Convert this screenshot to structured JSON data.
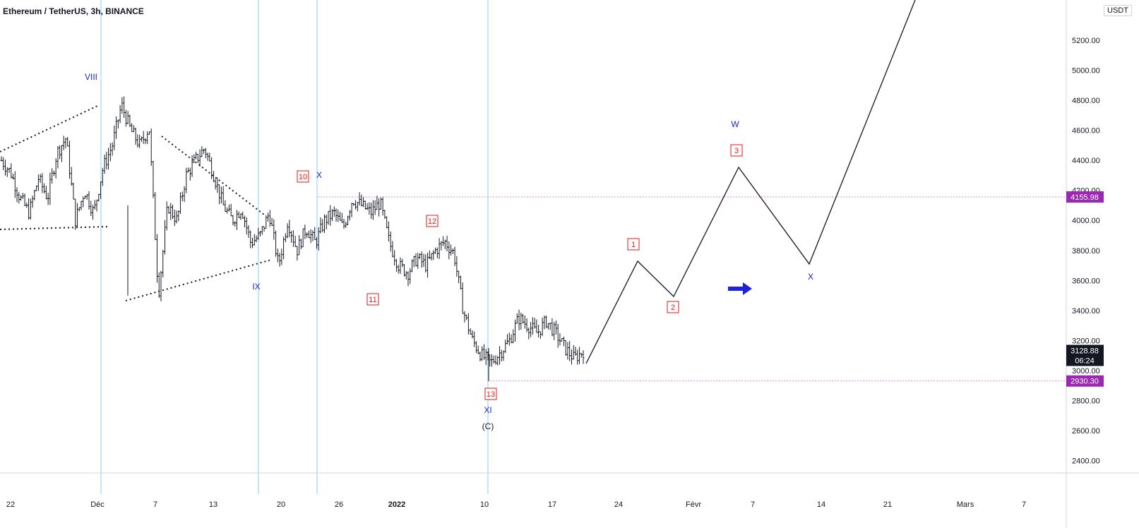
{
  "header": {
    "symbol_title": "Ethereum / TetherUS, 3h, BINANCE",
    "currency_button": "USDT"
  },
  "chart_data": {
    "type": "candlestick",
    "title": "Ethereum / TetherUS, 3h, BINANCE",
    "ylim": [
      2280,
      5480
    ],
    "y_ticks": [
      "2400.00",
      "2600.00",
      "2800.00",
      "3000.00",
      "3200.00",
      "3400.00",
      "3600.00",
      "3800.00",
      "4000.00",
      "4200.00",
      "4400.00",
      "4600.00",
      "4800.00",
      "5000.00",
      "5200.00"
    ],
    "x_ticks": [
      "22",
      "Déc",
      "7",
      "13",
      "20",
      "26",
      "2022",
      "10",
      "17",
      "24",
      "Févr",
      "7",
      "14",
      "21",
      "Mars",
      "7"
    ],
    "price_badges": [
      {
        "label": "4155.98",
        "value": 4155.98,
        "color": "#9c27b0"
      },
      {
        "label": "2930.30",
        "value": 2930.3,
        "color": "#9c27b0"
      }
    ],
    "last_price": {
      "label": "3128.88",
      "countdown": "06:24",
      "value": 3128.88
    },
    "horizontal_levels": [
      4155.98,
      2930.3
    ],
    "vertical_markers": [
      "Déc",
      "18",
      "23",
      "10"
    ],
    "price_path": [
      {
        "t": 0,
        "p": 4400
      },
      {
        "t": 1,
        "p": 4320
      },
      {
        "t": 2,
        "p": 4150
      },
      {
        "t": 3,
        "p": 4050
      },
      {
        "t": 4,
        "p": 4280
      },
      {
        "t": 5,
        "p": 4150
      },
      {
        "t": 6,
        "p": 4450
      },
      {
        "t": 7,
        "p": 4550
      },
      {
        "t": 8,
        "p": 4000
      },
      {
        "t": 9,
        "p": 4200
      },
      {
        "t": 10,
        "p": 4050
      },
      {
        "t": 11,
        "p": 4350
      },
      {
        "t": 12,
        "p": 4500
      },
      {
        "t": 13,
        "p": 4770
      },
      {
        "t": 14,
        "p": 4600
      },
      {
        "t": 15,
        "p": 4500
      },
      {
        "t": 16,
        "p": 4620
      },
      {
        "t": 17,
        "p": 3500
      },
      {
        "t": 18,
        "p": 4100
      },
      {
        "t": 19,
        "p": 4000
      },
      {
        "t": 20,
        "p": 4300
      },
      {
        "t": 21,
        "p": 4400
      },
      {
        "t": 22,
        "p": 4480
      },
      {
        "t": 23,
        "p": 4300
      },
      {
        "t": 24,
        "p": 4100
      },
      {
        "t": 25,
        "p": 4000
      },
      {
        "t": 26,
        "p": 4080
      },
      {
        "t": 27,
        "p": 3850
      },
      {
        "t": 28,
        "p": 3900
      },
      {
        "t": 29,
        "p": 4050
      },
      {
        "t": 30,
        "p": 3700
      },
      {
        "t": 31,
        "p": 4000
      },
      {
        "t": 32,
        "p": 3800
      },
      {
        "t": 33,
        "p": 3950
      },
      {
        "t": 34,
        "p": 3850
      },
      {
        "t": 35,
        "p": 4000
      },
      {
        "t": 36,
        "p": 4050
      },
      {
        "t": 37,
        "p": 3950
      },
      {
        "t": 38,
        "p": 4140
      },
      {
        "t": 39,
        "p": 4100
      },
      {
        "t": 40,
        "p": 4050
      },
      {
        "t": 41,
        "p": 4120
      },
      {
        "t": 42,
        "p": 3850
      },
      {
        "t": 43,
        "p": 3700
      },
      {
        "t": 44,
        "p": 3650
      },
      {
        "t": 45,
        "p": 3750
      },
      {
        "t": 46,
        "p": 3700
      },
      {
        "t": 47,
        "p": 3800
      },
      {
        "t": 48,
        "p": 3860
      },
      {
        "t": 49,
        "p": 3780
      },
      {
        "t": 50,
        "p": 3400
      },
      {
        "t": 51,
        "p": 3200
      },
      {
        "t": 52,
        "p": 3100
      },
      {
        "t": 53,
        "p": 3050
      },
      {
        "t": 54,
        "p": 3120
      },
      {
        "t": 55,
        "p": 3200
      },
      {
        "t": 56,
        "p": 3350
      },
      {
        "t": 57,
        "p": 3300
      },
      {
        "t": 58,
        "p": 3250
      },
      {
        "t": 59,
        "p": 3330
      },
      {
        "t": 60,
        "p": 3250
      },
      {
        "t": 61,
        "p": 3150
      },
      {
        "t": 62,
        "p": 3080
      },
      {
        "t": 63,
        "p": 3128.88
      }
    ],
    "projection": {
      "type": "line",
      "points": [
        {
          "x": "Jan 20",
          "y": 3060
        },
        {
          "x": "Jan 26",
          "y": 3730
        },
        {
          "x": "Jan 30",
          "y": 3490
        },
        {
          "x": "Feb 5",
          "y": 4350
        },
        {
          "x": "Feb 12",
          "y": 3710
        },
        {
          "x": "Feb 23",
          "y": 5450
        }
      ]
    },
    "wave_labels": {
      "red_boxed": [
        "10",
        "11",
        "12",
        "13",
        "1",
        "2",
        "3"
      ],
      "blue": [
        "VIII",
        "IX",
        "X",
        "XI",
        "W",
        "X"
      ],
      "black": [
        "(C)"
      ]
    }
  }
}
